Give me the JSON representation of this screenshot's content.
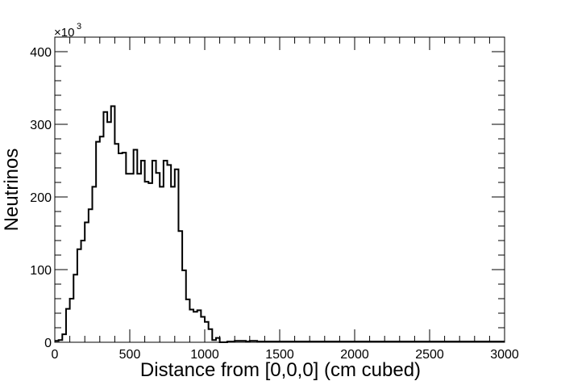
{
  "chart_data": {
    "type": "histogram",
    "title": "",
    "xlabel": "Distance from [0,0,0] (cm cubed)",
    "ylabel": "Neutrinos",
    "y_multiplier": {
      "base": "×10",
      "exponent": "3"
    },
    "xlim": [
      0,
      3000
    ],
    "ylim": [
      0,
      420
    ],
    "x_ticks": [
      0,
      500,
      1000,
      1500,
      2000,
      2500,
      3000
    ],
    "y_ticks": [
      0,
      100,
      200,
      300,
      400
    ],
    "x_tick_labels": [
      "0",
      "500",
      "1000",
      "1500",
      "2000",
      "2500",
      "3000"
    ],
    "y_tick_labels": [
      "0",
      "100",
      "200",
      "300",
      "400"
    ],
    "bin_width": 25,
    "bin_start": 0,
    "values_thousands": [
      2,
      3,
      11,
      46,
      60,
      93,
      128,
      140,
      165,
      183,
      214,
      276,
      283,
      317,
      303,
      325,
      273,
      260,
      261,
      232,
      232,
      265,
      232,
      250,
      221,
      219,
      250,
      233,
      214,
      250,
      244,
      214,
      238,
      153,
      99,
      59,
      45,
      42,
      44,
      35,
      28,
      18,
      3,
      6,
      0,
      0,
      1,
      1,
      2,
      2,
      2,
      1,
      2,
      2,
      1,
      1,
      1,
      1,
      1,
      1,
      1,
      1,
      1,
      1,
      1,
      1,
      1,
      1,
      1,
      1,
      1,
      1,
      1,
      1,
      1,
      1,
      1,
      1,
      1,
      1,
      1,
      1,
      1,
      1,
      1,
      1,
      1,
      1,
      1,
      1,
      1,
      1,
      1,
      1,
      1,
      1,
      1,
      1,
      1,
      1,
      1,
      1,
      1,
      1,
      1,
      1,
      1,
      1,
      1,
      1,
      1,
      1,
      1,
      1,
      1,
      1,
      1,
      1,
      1,
      1
    ]
  }
}
